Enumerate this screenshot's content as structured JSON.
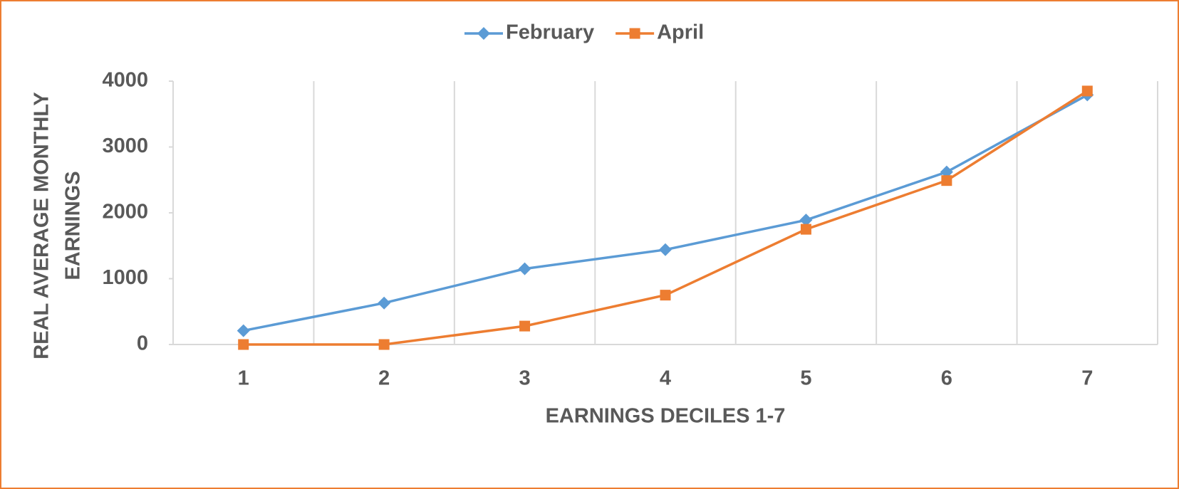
{
  "chart_data": {
    "type": "line",
    "categories": [
      "1",
      "2",
      "3",
      "4",
      "5",
      "6",
      "7"
    ],
    "series": [
      {
        "name": "February",
        "color": "#5b9bd5",
        "marker": "diamond",
        "values": [
          210,
          630,
          1150,
          1440,
          1890,
          2620,
          3790
        ]
      },
      {
        "name": "April",
        "color": "#ed7d31",
        "marker": "square",
        "values": [
          0,
          0,
          280,
          750,
          1750,
          2490,
          3850
        ]
      }
    ],
    "x_label": "EARNINGS DECILES 1-7",
    "y_label": [
      "REAL AVERAGE MONTHLY",
      "EARNINGS"
    ],
    "ylim": [
      0,
      4000
    ],
    "yticks": [
      0,
      1000,
      2000,
      3000,
      4000
    ],
    "grid": true,
    "legend": "top"
  }
}
